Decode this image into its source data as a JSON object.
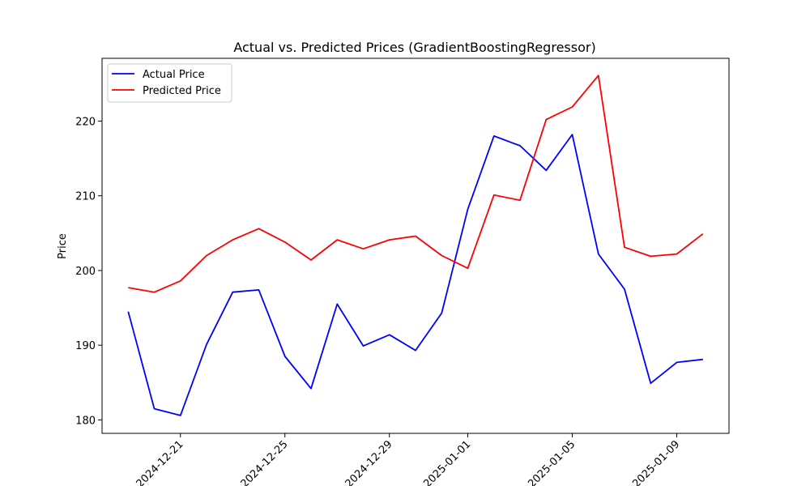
{
  "chart_data": {
    "type": "line",
    "title": "Actual vs. Predicted Prices (GradientBoostingRegressor)",
    "xlabel": "",
    "ylabel": "Price",
    "x": [
      "2024-12-19",
      "2024-12-20",
      "2024-12-21",
      "2024-12-22",
      "2024-12-23",
      "2024-12-24",
      "2024-12-25",
      "2024-12-26",
      "2024-12-27",
      "2024-12-28",
      "2024-12-29",
      "2024-12-30",
      "2024-12-31",
      "2025-01-01",
      "2025-01-02",
      "2025-01-03",
      "2025-01-04",
      "2025-01-05",
      "2025-01-06",
      "2025-01-07",
      "2025-01-08",
      "2025-01-09",
      "2025-01-10"
    ],
    "x_ticks": [
      "2024-12-21",
      "2024-12-25",
      "2024-12-29",
      "2025-01-01",
      "2025-01-05",
      "2025-01-09"
    ],
    "y_ticks": [
      180,
      190,
      200,
      210,
      220
    ],
    "ylim": [
      178.2,
      228.4
    ],
    "xlim": [
      "2024-12-18",
      "2025-01-11"
    ],
    "grid": false,
    "legend_position": "upper-left",
    "series": [
      {
        "name": "Actual Price",
        "color": "#0000ff",
        "values": [
          194.5,
          181.5,
          180.6,
          190.1,
          197.1,
          197.4,
          188.5,
          184.2,
          195.5,
          189.9,
          191.4,
          189.3,
          194.3,
          208.2,
          218.0,
          216.7,
          213.4,
          218.2,
          202.2,
          197.5,
          184.9,
          187.7,
          188.1
        ]
      },
      {
        "name": "Predicted Price",
        "color": "#ff0000",
        "values": [
          197.7,
          197.1,
          198.6,
          202.0,
          204.1,
          205.6,
          203.8,
          201.4,
          204.1,
          202.9,
          204.1,
          204.6,
          202.0,
          200.3,
          210.1,
          209.4,
          220.2,
          221.9,
          226.1,
          203.1,
          201.9,
          202.2,
          204.9
        ]
      }
    ]
  }
}
